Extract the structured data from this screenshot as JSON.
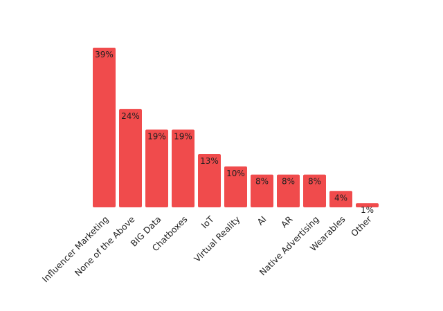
{
  "colors": {
    "bar": "#f04b4c",
    "text": "#1f1f1f",
    "background": "#ffffff"
  },
  "chart_data": {
    "type": "bar",
    "title": "",
    "xlabel": "",
    "ylabel": "",
    "grid": false,
    "categories": [
      "Influencer Marketing",
      "None of the Above",
      "BIG Data",
      "Chatboxes",
      "IoT",
      "Virtual Reality",
      "AI",
      "AR",
      "Native Advertising",
      "Wearables",
      "Other"
    ],
    "values": [
      39,
      24,
      19,
      19,
      13,
      10,
      8,
      8,
      8,
      4,
      1
    ],
    "data_labels": [
      "39%",
      "24%",
      "19%",
      "19%",
      "13%",
      "10%",
      "8%",
      "8%",
      "8%",
      "4%",
      "1%"
    ],
    "ylim": [
      0,
      39
    ]
  }
}
